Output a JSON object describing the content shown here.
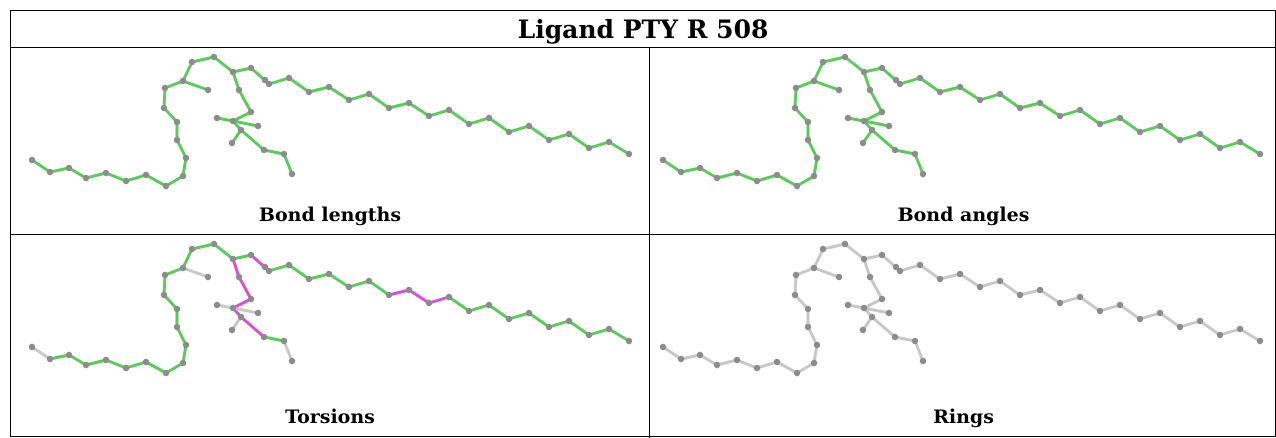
{
  "title": "Ligand PTY R 508",
  "panels": [
    {
      "caption": "Bond lengths",
      "scheme": "green"
    },
    {
      "caption": "Bond angles",
      "scheme": "green"
    },
    {
      "caption": "Torsions",
      "scheme": "torsion"
    },
    {
      "caption": "Rings",
      "scheme": "gray"
    }
  ],
  "colors": {
    "ok": "#5cc95c",
    "flag": "#d450d4",
    "neutral": "#c8c8c8",
    "atom": "#8c8c8c"
  }
}
